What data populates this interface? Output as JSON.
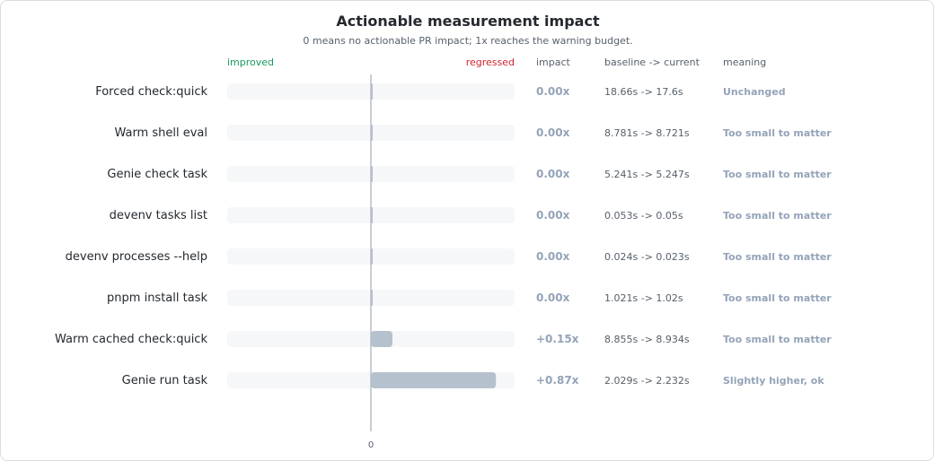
{
  "chart_data": {
    "type": "bar",
    "title": "Actionable measurement impact",
    "subtitle": "0 means no actionable PR impact; 1x reaches the warning budget.",
    "left_direction_label": "improved",
    "right_direction_label": "regressed",
    "columns": {
      "impact": "impact",
      "baseline": "baseline -> current",
      "meaning": "meaning"
    },
    "xlim": [
      -1,
      1
    ],
    "x_tick_label": "0",
    "categories": [
      "Forced check:quick",
      "Warm shell eval",
      "Genie check task",
      "devenv tasks list",
      "devenv processes --help",
      "pnpm install task",
      "Warm cached check:quick",
      "Genie run task"
    ],
    "values": [
      0.0,
      0.0,
      0.0,
      0.0,
      0.0,
      0.0,
      0.15,
      0.87
    ],
    "impact_labels": [
      "0.00x",
      "0.00x",
      "0.00x",
      "0.00x",
      "0.00x",
      "0.00x",
      "+0.15x",
      "+0.87x"
    ],
    "baseline_current": [
      "18.66s -> 17.6s",
      "8.781s -> 8.721s",
      "5.241s -> 5.247s",
      "0.053s -> 0.05s",
      "0.024s -> 0.023s",
      "1.021s -> 1.02s",
      "8.855s -> 8.934s",
      "2.029s -> 2.232s"
    ],
    "meanings": [
      "Unchanged",
      "Too small to matter",
      "Too small to matter",
      "Too small to matter",
      "Too small to matter",
      "Too small to matter",
      "Too small to matter",
      "Slightly higher, ok"
    ],
    "colors": {
      "bar": "#b6c1ce",
      "track": "#f6f7f9",
      "zero_line": "#b6bdc6",
      "improved": "#1a9a5a",
      "regressed": "#d1242f",
      "muted": "#94a3b8"
    }
  }
}
